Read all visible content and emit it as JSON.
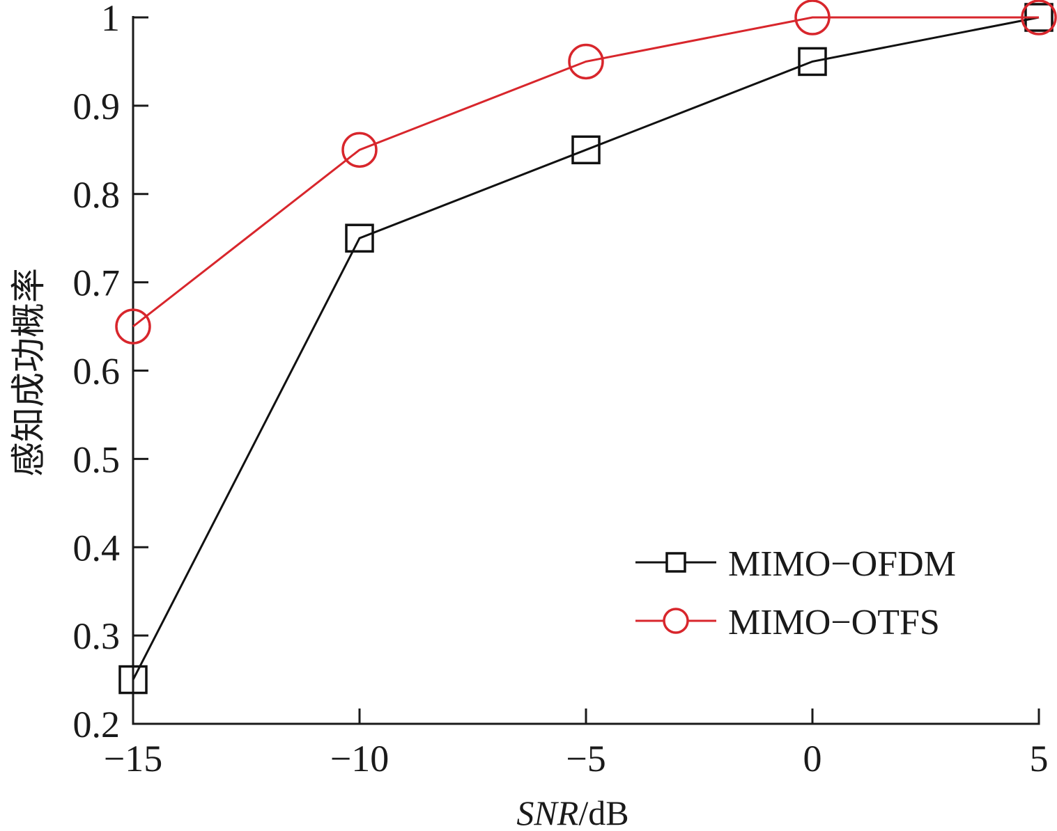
{
  "chart_data": {
    "type": "line",
    "x": [
      -15,
      -10,
      -5,
      0,
      5
    ],
    "xlim": [
      -15,
      5
    ],
    "ylim": [
      0.2,
      1.0
    ],
    "xticks": [
      -15,
      -10,
      -5,
      0,
      5
    ],
    "xtick_labels": [
      "−15",
      "−10",
      "−5",
      "0",
      "5"
    ],
    "yticks": [
      0.2,
      0.3,
      0.4,
      0.5,
      0.6,
      0.7,
      0.8,
      0.9,
      1.0
    ],
    "ytick_labels": [
      "0.2",
      "0.3",
      "0.4",
      "0.5",
      "0.6",
      "0.7",
      "0.8",
      "0.9",
      "1"
    ],
    "xlabel": {
      "italic": "SNR",
      "unit": "/dB"
    },
    "ylabel": "感知成功概率",
    "grid": false,
    "legend_position": "bottom-right",
    "series": [
      {
        "name": "MIMO−OFDM",
        "values": [
          0.25,
          0.75,
          0.85,
          0.95,
          1.0
        ],
        "color": "#111111",
        "marker": "square"
      },
      {
        "name": "MIMO−OTFS",
        "values": [
          0.65,
          0.85,
          0.95,
          1.0,
          1.0
        ],
        "color": "#d8262c",
        "marker": "circle"
      }
    ]
  }
}
